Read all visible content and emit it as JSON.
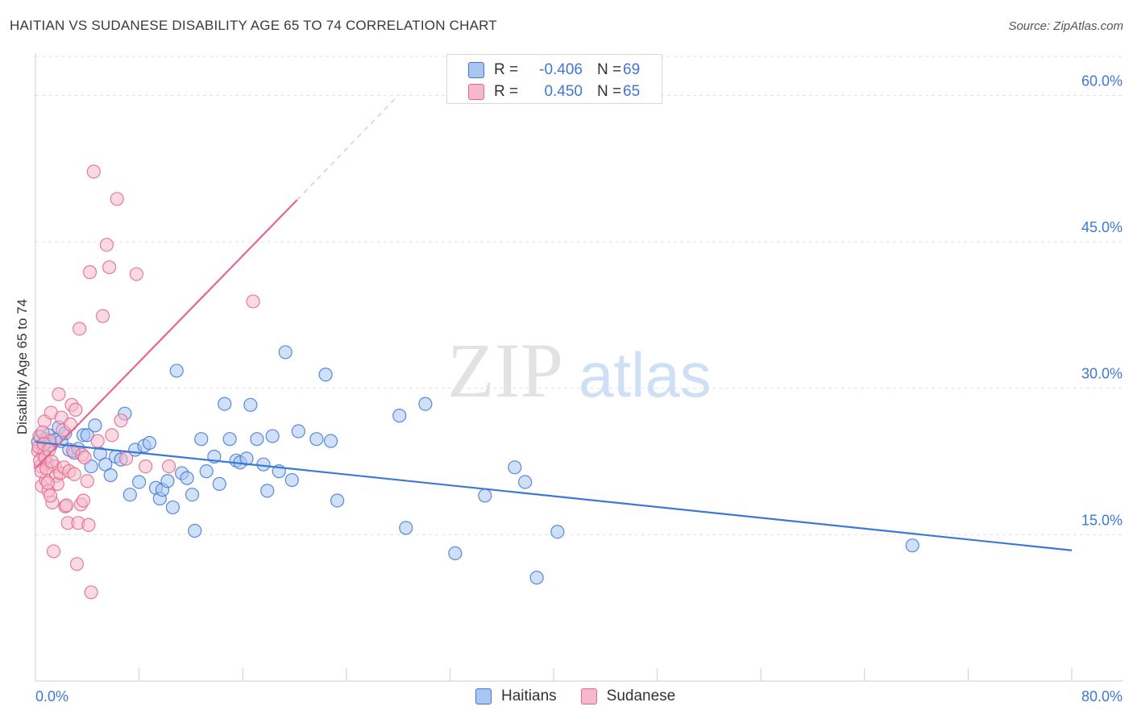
{
  "title": "HAITIAN VS SUDANESE DISABILITY AGE 65 TO 74 CORRELATION CHART",
  "source": "Source: ZipAtlas.com",
  "watermark": {
    "zip": "ZIP",
    "atlas": "atlas"
  },
  "colors": {
    "haitians": "#3d78d6",
    "haitians_fill": "#a9c6f2",
    "sudanese": "#e2668e",
    "sudanese_fill": "#f6b9ca",
    "grid": "#e3e3e3",
    "axis_text": "#3d78d6"
  },
  "legend": {
    "haitians": {
      "r_label": "R =",
      "r_value": "-0.406",
      "n_label": "N =",
      "n_value": "69"
    },
    "sudanese": {
      "r_label": "R =",
      "r_value": "0.450",
      "n_label": "N =",
      "n_value": "65"
    }
  },
  "bottom_legend": {
    "haitians": "Haitians",
    "sudanese": "Sudanese"
  },
  "chart_data": {
    "type": "scatter",
    "title": "HAITIAN VS SUDANESE DISABILITY AGE 65 TO 74 CORRELATION CHART",
    "xlabel": "",
    "ylabel": "Disability Age 65 to 74",
    "xlim": [
      0,
      80
    ],
    "ylim": [
      0,
      64
    ],
    "x_tick_labels": [
      "0.0%",
      "80.0%"
    ],
    "y_ticks": [
      15,
      30,
      45,
      60
    ],
    "y_tick_labels": [
      "15.0%",
      "30.0%",
      "45.0%",
      "60.0%"
    ],
    "grid": true,
    "legend_placement": "bottom-center",
    "series": [
      {
        "name": "Haitians",
        "color": "#3d78d6",
        "points": [
          [
            0.2,
            24.5
          ],
          [
            0.4,
            25.0
          ],
          [
            0.6,
            24.0
          ],
          [
            0.8,
            24.8
          ],
          [
            1.0,
            25.2
          ],
          [
            1.2,
            24.2
          ],
          [
            1.5,
            24.7
          ],
          [
            1.8,
            26.0
          ],
          [
            2.0,
            24.6
          ],
          [
            2.3,
            25.4
          ],
          [
            2.6,
            23.7
          ],
          [
            3.0,
            23.4
          ],
          [
            3.3,
            23.8
          ],
          [
            3.7,
            25.2
          ],
          [
            4.0,
            25.2
          ],
          [
            4.3,
            22.0
          ],
          [
            4.6,
            26.2
          ],
          [
            5.0,
            23.3
          ],
          [
            5.4,
            22.2
          ],
          [
            5.8,
            21.1
          ],
          [
            6.2,
            23.0
          ],
          [
            6.6,
            22.7
          ],
          [
            6.9,
            27.4
          ],
          [
            7.3,
            19.1
          ],
          [
            7.7,
            23.7
          ],
          [
            8.0,
            20.4
          ],
          [
            8.4,
            24.1
          ],
          [
            8.8,
            24.4
          ],
          [
            9.3,
            19.8
          ],
          [
            9.6,
            18.7
          ],
          [
            9.8,
            19.6
          ],
          [
            10.2,
            20.5
          ],
          [
            10.6,
            17.8
          ],
          [
            10.9,
            31.8
          ],
          [
            11.3,
            21.3
          ],
          [
            11.7,
            20.8
          ],
          [
            12.1,
            19.1
          ],
          [
            12.3,
            15.4
          ],
          [
            12.8,
            24.8
          ],
          [
            13.2,
            21.5
          ],
          [
            13.8,
            23.0
          ],
          [
            14.2,
            20.2
          ],
          [
            14.6,
            28.4
          ],
          [
            15.0,
            24.8
          ],
          [
            15.5,
            22.6
          ],
          [
            15.8,
            22.4
          ],
          [
            16.3,
            22.8
          ],
          [
            16.6,
            28.3
          ],
          [
            17.1,
            24.8
          ],
          [
            17.6,
            22.2
          ],
          [
            17.9,
            19.5
          ],
          [
            18.3,
            25.1
          ],
          [
            18.8,
            21.5
          ],
          [
            19.3,
            33.7
          ],
          [
            19.8,
            20.6
          ],
          [
            20.3,
            25.6
          ],
          [
            21.7,
            24.8
          ],
          [
            22.4,
            31.4
          ],
          [
            22.8,
            24.6
          ],
          [
            23.3,
            18.5
          ],
          [
            28.1,
            27.2
          ],
          [
            28.6,
            15.7
          ],
          [
            30.1,
            28.4
          ],
          [
            32.4,
            13.1
          ],
          [
            34.7,
            19.0
          ],
          [
            37.0,
            21.9
          ],
          [
            37.8,
            20.4
          ],
          [
            38.7,
            10.6
          ],
          [
            40.3,
            15.3
          ],
          [
            67.7,
            13.9
          ]
        ],
        "trend": {
          "x": [
            0,
            80
          ],
          "y": [
            24.5,
            13.4
          ]
        }
      },
      {
        "name": "Sudanese",
        "color": "#e2668e",
        "points": [
          [
            0.2,
            23.6
          ],
          [
            0.3,
            25.1
          ],
          [
            0.4,
            22.0
          ],
          [
            0.5,
            20.0
          ],
          [
            0.6,
            23.2
          ],
          [
            0.7,
            26.6
          ],
          [
            0.8,
            20.6
          ],
          [
            0.9,
            22.3
          ],
          [
            1.0,
            19.5
          ],
          [
            1.1,
            24.6
          ],
          [
            1.2,
            27.5
          ],
          [
            1.3,
            18.3
          ],
          [
            1.4,
            13.3
          ],
          [
            1.5,
            22.0
          ],
          [
            1.6,
            21.0
          ],
          [
            1.7,
            20.2
          ],
          [
            1.8,
            29.4
          ],
          [
            1.9,
            21.3
          ],
          [
            2.0,
            27.0
          ],
          [
            2.1,
            25.7
          ],
          [
            2.2,
            21.9
          ],
          [
            2.3,
            17.9
          ],
          [
            2.4,
            18.0
          ],
          [
            2.5,
            16.2
          ],
          [
            2.6,
            21.5
          ],
          [
            2.7,
            26.3
          ],
          [
            2.8,
            28.3
          ],
          [
            2.9,
            23.6
          ],
          [
            3.0,
            21.2
          ],
          [
            3.1,
            27.8
          ],
          [
            3.2,
            12.0
          ],
          [
            3.3,
            16.2
          ],
          [
            3.4,
            36.1
          ],
          [
            3.5,
            18.1
          ],
          [
            3.6,
            23.2
          ],
          [
            3.7,
            18.5
          ],
          [
            3.8,
            22.9
          ],
          [
            4.0,
            20.5
          ],
          [
            4.1,
            16.0
          ],
          [
            4.2,
            41.9
          ],
          [
            4.3,
            9.1
          ],
          [
            4.5,
            52.2
          ],
          [
            4.8,
            24.6
          ],
          [
            5.2,
            37.4
          ],
          [
            5.5,
            44.7
          ],
          [
            5.7,
            42.4
          ],
          [
            5.9,
            25.2
          ],
          [
            6.3,
            49.4
          ],
          [
            6.6,
            26.7
          ],
          [
            7.0,
            22.8
          ],
          [
            7.8,
            41.7
          ],
          [
            8.5,
            22.0
          ],
          [
            10.3,
            22.0
          ],
          [
            16.8,
            38.9
          ],
          [
            0.25,
            24.0
          ],
          [
            0.35,
            22.6
          ],
          [
            0.45,
            21.5
          ],
          [
            0.55,
            25.5
          ],
          [
            0.65,
            24.3
          ],
          [
            0.75,
            22.9
          ],
          [
            0.85,
            21.8
          ],
          [
            0.95,
            20.3
          ],
          [
            1.05,
            23.7
          ],
          [
            1.15,
            19.0
          ],
          [
            1.25,
            22.5
          ]
        ],
        "trend": {
          "x": [
            0,
            20.2
          ],
          "y": [
            21.8,
            49.3
          ]
        },
        "trend_dashed": {
          "x": [
            20.2,
            28.0
          ],
          "y": [
            49.3,
            60.0
          ]
        }
      }
    ]
  }
}
